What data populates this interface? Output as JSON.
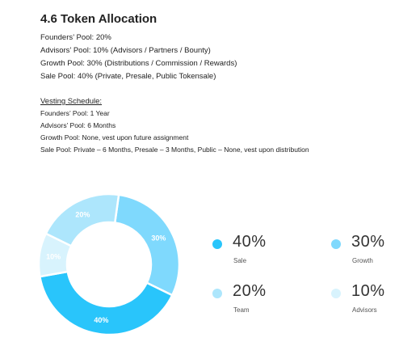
{
  "heading": "4.6 Token Allocation",
  "pools": [
    "Founders’ Pool: 20%",
    "Advisors’ Pool: 10% (Advisors / Partners / Bounty)",
    "Growth Pool: 30% (Distributions / Commission / Rewards)",
    "Sale Pool: 40% (Private, Presale, Public Tokensale)"
  ],
  "vesting": {
    "title": "Vesting Schedule:",
    "lines": [
      "Founders’ Pool: 1 Year",
      "Advisors’ Pool: 6 Months",
      "Growth Pool: None, vest upon future assignment",
      "Sale Pool: Private – 6 Months, Presale – 3 Months, Public – None, vest upon distribution"
    ]
  },
  "chart_data": {
    "type": "pie",
    "style": "donut",
    "title": "",
    "slices": [
      {
        "label": "Sale",
        "value": 40,
        "display": "40%",
        "color": "#29c5fb"
      },
      {
        "label": "Growth",
        "value": 30,
        "display": "30%",
        "color": "#7fd9fd"
      },
      {
        "label": "Team",
        "value": 20,
        "display": "20%",
        "color": "#ade6fc"
      },
      {
        "label": "Advisors",
        "value": 10,
        "display": "10%",
        "color": "#d8f3fd"
      }
    ]
  }
}
